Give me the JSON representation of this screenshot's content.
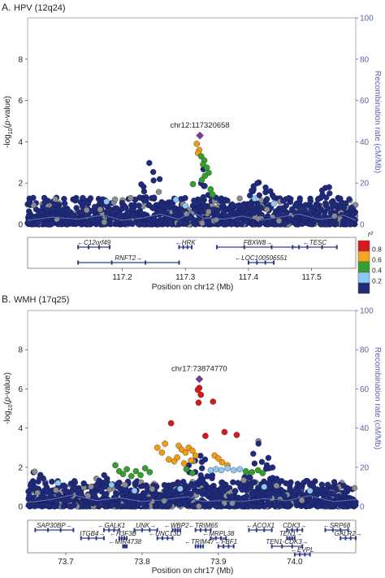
{
  "chart_data": [
    {
      "type": "scatter",
      "panel_label": "A.",
      "title": "HPV (12q24)",
      "xlabel": "Position on chr12 (Mb)",
      "ylabel": "-log10(p-value)",
      "y2label": "Recombination rate (cM/Mb)",
      "xlim": [
        117.05,
        117.57
      ],
      "ylim": [
        0,
        10
      ],
      "y2lim": [
        0,
        100
      ],
      "x_ticks": [
        "117.2",
        "117.3",
        "117.4",
        "117.5"
      ],
      "y_ticks": [
        "0",
        "2",
        "4",
        "6",
        "8"
      ],
      "y2_ticks": [
        "0",
        "20",
        "40",
        "60",
        "80",
        "100"
      ],
      "lead_snp": {
        "label": "chr12:117320658",
        "x": 117.323,
        "y": 4.3
      },
      "points": [
        {
          "x": 117.318,
          "y": 3.9,
          "r2": "0.6-0.8"
        },
        {
          "x": 117.322,
          "y": 3.6,
          "r2": "0.6-0.8"
        },
        {
          "x": 117.32,
          "y": 3.45,
          "r2": "0.6-0.8"
        },
        {
          "x": 117.325,
          "y": 3.3,
          "r2": "0.4-0.6"
        },
        {
          "x": 117.33,
          "y": 3.1,
          "r2": "0.4-0.6"
        },
        {
          "x": 117.328,
          "y": 2.9,
          "r2": "0.4-0.6"
        },
        {
          "x": 117.334,
          "y": 2.75,
          "r2": "0.4-0.6"
        },
        {
          "x": 117.337,
          "y": 2.5,
          "r2": "0.4-0.6"
        },
        {
          "x": 117.331,
          "y": 2.35,
          "r2": "0.4-0.6"
        },
        {
          "x": 117.326,
          "y": 2.15,
          "r2": "0.4-0.6"
        },
        {
          "x": 117.312,
          "y": 1.95,
          "r2": "0.4-0.6"
        },
        {
          "x": 117.34,
          "y": 1.7,
          "r2": "0.4-0.6"
        },
        {
          "x": 117.343,
          "y": 1.45,
          "r2": "0.4-0.6"
        },
        {
          "x": 117.285,
          "y": 1.2,
          "r2": "0.2-0.4"
        },
        {
          "x": 117.41,
          "y": 1.25,
          "r2": "0.2-0.4"
        },
        {
          "x": 117.44,
          "y": 1.0,
          "r2": "0.2-0.4"
        },
        {
          "x": 117.175,
          "y": 1.1,
          "r2": "0.2-0.4"
        },
        {
          "x": 117.3,
          "y": 0.9,
          "r2": "0.2-0.4"
        }
      ],
      "recombination": [
        [
          117.05,
          2.0
        ],
        [
          117.09,
          3.5
        ],
        [
          117.13,
          2.5
        ],
        [
          117.17,
          4.5
        ],
        [
          117.2,
          2.0
        ],
        [
          117.23,
          3.0
        ],
        [
          117.26,
          5.0
        ],
        [
          117.29,
          2.5
        ],
        [
          117.31,
          6.0
        ],
        [
          117.33,
          3.0
        ],
        [
          117.36,
          2.5
        ],
        [
          117.39,
          4.0
        ],
        [
          117.42,
          2.0
        ],
        [
          117.45,
          3.5
        ],
        [
          117.48,
          5.0
        ],
        [
          117.51,
          2.5
        ],
        [
          117.53,
          3.0
        ],
        [
          117.55,
          4.5
        ],
        [
          117.57,
          2.0
        ]
      ],
      "genes": [
        {
          "name": "C12orf49",
          "dir": "left",
          "start": 117.13,
          "end": 117.18,
          "row": 0
        },
        {
          "name": "HRK",
          "dir": "left",
          "start": 117.29,
          "end": 117.31,
          "row": 0
        },
        {
          "name": "FBXW8",
          "dir": "right",
          "start": 117.35,
          "end": 117.48,
          "row": 0
        },
        {
          "name": "TESC",
          "dir": "left",
          "start": 117.47,
          "end": 117.54,
          "row": 0
        },
        {
          "name": "RNFT2",
          "dir": "right",
          "start": 117.13,
          "end": 117.29,
          "row": 1
        },
        {
          "name": "LOC100506551",
          "dir": "left",
          "start": 117.4,
          "end": 117.44,
          "row": 1
        }
      ]
    },
    {
      "type": "scatter",
      "panel_label": "B.",
      "title": "WMH (17q25)",
      "xlabel": "Position on chr17 (Mb)",
      "ylabel": "-log10(p-value)",
      "y2label": "Recombination rate (cM/Mb)",
      "xlim": [
        73.65,
        74.08
      ],
      "ylim": [
        0,
        10
      ],
      "y2lim": [
        0,
        100
      ],
      "x_ticks": [
        "73.7",
        "73.8",
        "73.9",
        "74.0"
      ],
      "y_ticks": [
        "0",
        "2",
        "4",
        "6",
        "8"
      ],
      "y2_ticks": [
        "0",
        "20",
        "40",
        "60",
        "80",
        "100"
      ],
      "lead_snp": {
        "label": "chr17:73874770",
        "x": 73.875,
        "y": 6.5
      },
      "points": [
        {
          "x": 73.875,
          "y": 6.05,
          "r2": "0.8-1.0"
        },
        {
          "x": 73.873,
          "y": 5.95,
          "r2": "0.8-1.0"
        },
        {
          "x": 73.877,
          "y": 5.7,
          "r2": "0.8-1.0"
        },
        {
          "x": 73.874,
          "y": 5.3,
          "r2": "0.8-1.0"
        },
        {
          "x": 73.893,
          "y": 5.35,
          "r2": "0.8-1.0"
        },
        {
          "x": 73.838,
          "y": 4.25,
          "r2": "0.8-1.0"
        },
        {
          "x": 73.908,
          "y": 3.8,
          "r2": "0.8-1.0"
        },
        {
          "x": 73.883,
          "y": 3.6,
          "r2": "0.8-1.0"
        },
        {
          "x": 73.924,
          "y": 3.65,
          "r2": "0.8-1.0"
        },
        {
          "x": 73.848,
          "y": 3.1,
          "r2": "0.6-0.8"
        },
        {
          "x": 73.852,
          "y": 2.9,
          "r2": "0.6-0.8"
        },
        {
          "x": 73.857,
          "y": 2.75,
          "r2": "0.6-0.8"
        },
        {
          "x": 73.861,
          "y": 3.0,
          "r2": "0.6-0.8"
        },
        {
          "x": 73.866,
          "y": 2.85,
          "r2": "0.6-0.8"
        },
        {
          "x": 73.87,
          "y": 2.6,
          "r2": "0.6-0.8"
        },
        {
          "x": 73.846,
          "y": 2.5,
          "r2": "0.6-0.8"
        },
        {
          "x": 73.842,
          "y": 2.3,
          "r2": "0.6-0.8"
        },
        {
          "x": 73.855,
          "y": 2.2,
          "r2": "0.6-0.8"
        },
        {
          "x": 73.864,
          "y": 2.35,
          "r2": "0.6-0.8"
        },
        {
          "x": 73.82,
          "y": 3.0,
          "r2": "0.6-0.8"
        },
        {
          "x": 73.826,
          "y": 2.75,
          "r2": "0.6-0.8"
        },
        {
          "x": 73.83,
          "y": 3.2,
          "r2": "0.6-0.8"
        },
        {
          "x": 73.835,
          "y": 2.4,
          "r2": "0.6-0.8"
        },
        {
          "x": 73.895,
          "y": 2.6,
          "r2": "0.6-0.8"
        },
        {
          "x": 73.9,
          "y": 2.45,
          "r2": "0.6-0.8"
        },
        {
          "x": 73.905,
          "y": 2.25,
          "r2": "0.6-0.8"
        },
        {
          "x": 73.912,
          "y": 2.1,
          "r2": "0.6-0.8"
        },
        {
          "x": 73.765,
          "y": 2.1,
          "r2": "0.4-0.6"
        },
        {
          "x": 73.77,
          "y": 1.8,
          "r2": "0.4-0.6"
        },
        {
          "x": 73.775,
          "y": 1.65,
          "r2": "0.4-0.6"
        },
        {
          "x": 73.78,
          "y": 1.9,
          "r2": "0.4-0.6"
        },
        {
          "x": 73.786,
          "y": 1.55,
          "r2": "0.4-0.6"
        },
        {
          "x": 73.792,
          "y": 1.8,
          "r2": "0.4-0.6"
        },
        {
          "x": 73.798,
          "y": 1.6,
          "r2": "0.4-0.6"
        },
        {
          "x": 73.804,
          "y": 1.95,
          "r2": "0.4-0.6"
        },
        {
          "x": 73.81,
          "y": 1.75,
          "r2": "0.4-0.6"
        },
        {
          "x": 73.858,
          "y": 1.9,
          "r2": "0.4-0.6"
        },
        {
          "x": 73.866,
          "y": 1.7,
          "r2": "0.4-0.6"
        },
        {
          "x": 73.936,
          "y": 1.8,
          "r2": "0.4-0.6"
        },
        {
          "x": 73.944,
          "y": 1.75,
          "r2": "0.4-0.6"
        },
        {
          "x": 73.952,
          "y": 1.85,
          "r2": "0.4-0.6"
        },
        {
          "x": 73.958,
          "y": 1.7,
          "r2": "0.4-0.6"
        },
        {
          "x": 73.89,
          "y": 1.85,
          "r2": "0.2-0.4"
        },
        {
          "x": 73.897,
          "y": 1.9,
          "r2": "0.2-0.4"
        },
        {
          "x": 73.904,
          "y": 1.85,
          "r2": "0.2-0.4"
        },
        {
          "x": 73.912,
          "y": 1.95,
          "r2": "0.2-0.4"
        },
        {
          "x": 73.92,
          "y": 1.85,
          "r2": "0.2-0.4"
        },
        {
          "x": 73.928,
          "y": 1.9,
          "r2": "0.2-0.4"
        },
        {
          "x": 73.76,
          "y": 1.1,
          "r2": "0.2-0.4"
        },
        {
          "x": 73.79,
          "y": 0.8,
          "r2": "0.2-0.4"
        },
        {
          "x": 73.85,
          "y": 0.9,
          "r2": "0.2-0.4"
        },
        {
          "x": 73.69,
          "y": 1.2,
          "r2": "0.2-0.4"
        },
        {
          "x": 73.96,
          "y": 1.0,
          "r2": "0.2-0.4"
        },
        {
          "x": 74.02,
          "y": 0.8,
          "r2": "0.2-0.4"
        }
      ],
      "recombination": [
        [
          73.65,
          2.0
        ],
        [
          73.68,
          3.5
        ],
        [
          73.71,
          6.0
        ],
        [
          73.74,
          3.0
        ],
        [
          73.77,
          4.5
        ],
        [
          73.8,
          2.5
        ],
        [
          73.83,
          3.5
        ],
        [
          73.86,
          5.0
        ],
        [
          73.88,
          2.5
        ],
        [
          73.9,
          3.0
        ],
        [
          73.93,
          2.5
        ],
        [
          73.96,
          4.0
        ],
        [
          73.99,
          3.0
        ],
        [
          74.02,
          5.5
        ],
        [
          74.05,
          2.5
        ],
        [
          74.08,
          3.5
        ]
      ],
      "genes": [
        {
          "name": "SAP30BP",
          "dir": "right",
          "start": 73.66,
          "end": 73.71,
          "row": 0
        },
        {
          "name": "GALK1",
          "dir": "left",
          "start": 73.75,
          "end": 73.77,
          "row": 0
        },
        {
          "name": "UNK",
          "dir": "right",
          "start": 73.79,
          "end": 73.82,
          "row": 0
        },
        {
          "name": "WBP2",
          "dir": "left",
          "start": 73.84,
          "end": 73.85,
          "row": 0
        },
        {
          "name": "TRIM65",
          "dir": "left",
          "start": 73.87,
          "end": 73.89,
          "row": 0
        },
        {
          "name": "ACOX1",
          "dir": "left",
          "start": 73.94,
          "end": 73.97,
          "row": 0
        },
        {
          "name": "CDK3",
          "dir": "right",
          "start": 73.99,
          "end": 74.01,
          "row": 0
        },
        {
          "name": "SRP68",
          "dir": "left",
          "start": 74.04,
          "end": 74.07,
          "row": 0
        },
        {
          "name": "ITGB4",
          "dir": "right",
          "start": 73.72,
          "end": 73.75,
          "row": 1
        },
        {
          "name": "H3F3B",
          "dir": "left",
          "start": 73.77,
          "end": 73.78,
          "row": 1
        },
        {
          "name": "UNC13D",
          "dir": "left",
          "start": 73.82,
          "end": 73.84,
          "row": 1
        },
        {
          "name": "MRPL38",
          "dir": "left",
          "start": 73.89,
          "end": 73.91,
          "row": 1
        },
        {
          "name": "TEN1",
          "dir": "right",
          "start": 73.99,
          "end": 74.0,
          "row": 1
        },
        {
          "name": "GALR2",
          "dir": "right",
          "start": 74.06,
          "end": 74.08,
          "row": 1
        },
        {
          "name": "MIR4738",
          "dir": "left",
          "start": 73.775,
          "end": 73.78,
          "row": 2
        },
        {
          "name": "TRIM47",
          "dir": "left",
          "start": 73.87,
          "end": 73.88,
          "row": 2
        },
        {
          "name": "FBF1",
          "dir": "left",
          "start": 73.9,
          "end": 73.92,
          "row": 2
        },
        {
          "name": "TEN1-CDK3",
          "dir": "right",
          "start": 73.97,
          "end": 74.01,
          "row": 2
        },
        {
          "name": "EVPL",
          "dir": "left",
          "start": 74.0,
          "end": 74.02,
          "row": 3
        }
      ]
    }
  ],
  "legend": {
    "title": "r²",
    "bins": [
      {
        "label": "0.8",
        "color": "#d7191c"
      },
      {
        "label": "0.6",
        "color": "#f7a421"
      },
      {
        "label": "0.4",
        "color": "#33a02c"
      },
      {
        "label": "0.2",
        "color": "#8fc8f0"
      },
      {
        "label": "",
        "color": "#1f2b7a"
      }
    ]
  },
  "colors": {
    "background_snp": "#1f2b7a",
    "unknown_snp": "#8c8c8c",
    "lead_snp": "#7d3c98",
    "recombination_line": "#6e7ab8",
    "right_axis": "#5a64a8",
    "r2_0.8-1.0": "#d7191c",
    "r2_0.6-0.8": "#f39c12",
    "r2_0.4-0.6": "#33a02c",
    "r2_0.2-0.4": "#8fc8f0"
  }
}
